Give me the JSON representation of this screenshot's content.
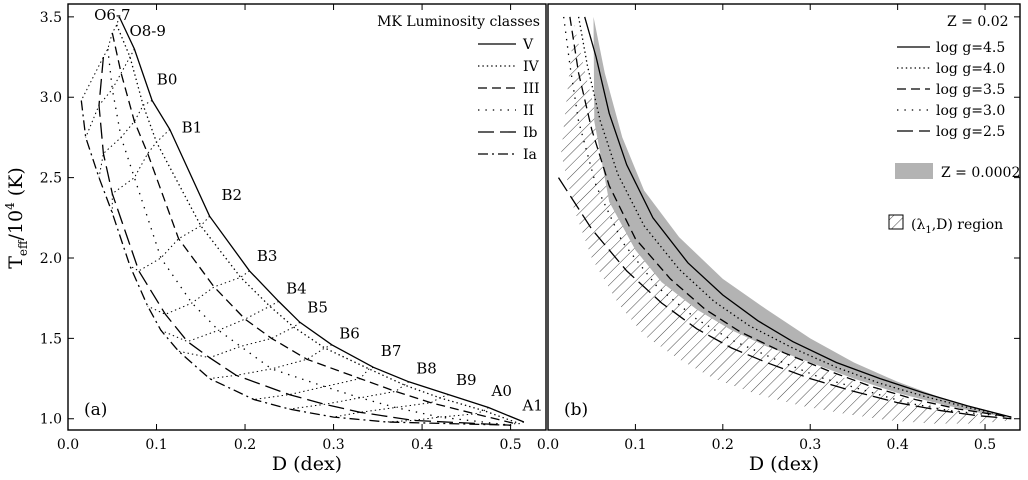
{
  "chart_data": [
    {
      "type": "line",
      "panel_label": "(a)",
      "xlabel": "D  (dex)",
      "ylabel": "T_eff/10^4  (K)",
      "xlim": [
        0.0,
        0.54
      ],
      "ylim": [
        0.93,
        3.58
      ],
      "x_ticks": [
        "0.0",
        "0.1",
        "0.2",
        "0.3",
        "0.4",
        "0.5"
      ],
      "y_ticks": [
        "1.0",
        "1.5",
        "2.0",
        "2.5",
        "3.0",
        "3.5"
      ],
      "legend": {
        "title": "MK Luminosity classes",
        "position": "top-right",
        "entries": [
          "V",
          "IV",
          "III",
          "II",
          "Ib",
          "Ia"
        ]
      },
      "series": [
        {
          "name": "V",
          "style": "solid",
          "x": [
            0.058,
            0.075,
            0.095,
            0.115,
            0.16,
            0.205,
            0.238,
            0.262,
            0.298,
            0.345,
            0.385,
            0.43,
            0.475,
            0.515
          ],
          "y": [
            3.5,
            3.3,
            2.98,
            2.8,
            2.26,
            1.92,
            1.73,
            1.6,
            1.46,
            1.32,
            1.23,
            1.15,
            1.07,
            0.98
          ]
        },
        {
          "name": "IV",
          "style": "dotted",
          "x": [
            0.055,
            0.07,
            0.085,
            0.1,
            0.15,
            0.195,
            0.228,
            0.255,
            0.29,
            0.34,
            0.38,
            0.42,
            0.47,
            0.51
          ],
          "y": [
            3.45,
            3.25,
            2.95,
            2.72,
            2.2,
            1.88,
            1.7,
            1.57,
            1.44,
            1.31,
            1.21,
            1.13,
            1.05,
            0.97
          ]
        },
        {
          "name": "III",
          "style": "dashed",
          "x": [
            0.05,
            0.06,
            0.075,
            0.09,
            0.125,
            0.165,
            0.2,
            0.23,
            0.27,
            0.33,
            0.37,
            0.41,
            0.46,
            0.505
          ],
          "y": [
            3.4,
            3.15,
            2.85,
            2.65,
            2.12,
            1.82,
            1.62,
            1.5,
            1.37,
            1.25,
            1.17,
            1.1,
            1.03,
            0.97
          ]
        },
        {
          "name": "II",
          "style": "dotted-sparse",
          "x": [
            0.045,
            0.05,
            0.06,
            0.075,
            0.105,
            0.14,
            0.17,
            0.195,
            0.23,
            0.29,
            0.33,
            0.37,
            0.42,
            0.5
          ],
          "y": [
            3.3,
            3.05,
            2.75,
            2.5,
            2.0,
            1.72,
            1.55,
            1.45,
            1.31,
            1.2,
            1.13,
            1.07,
            1.01,
            0.96
          ]
        },
        {
          "name": "Ib",
          "style": "long-dash",
          "x": [
            0.04,
            0.035,
            0.04,
            0.05,
            0.08,
            0.11,
            0.135,
            0.16,
            0.19,
            0.25,
            0.29,
            0.33,
            0.39,
            0.5
          ],
          "y": [
            3.25,
            2.95,
            2.65,
            2.4,
            1.92,
            1.65,
            1.48,
            1.38,
            1.27,
            1.15,
            1.09,
            1.04,
            0.99,
            0.96
          ]
        },
        {
          "name": "Ia",
          "style": "dash-dot",
          "x": [
            0.015,
            0.02,
            0.035,
            0.05,
            0.07,
            0.09,
            0.105,
            0.125,
            0.16,
            0.21,
            0.25,
            0.3,
            0.36,
            0.5
          ],
          "y": [
            2.98,
            2.75,
            2.5,
            2.28,
            1.95,
            1.7,
            1.55,
            1.42,
            1.25,
            1.12,
            1.06,
            1.01,
            0.98,
            0.96
          ]
        }
      ],
      "spectral_types": [
        "O6-7",
        "O8-9",
        "B0",
        "B1",
        "B2",
        "B3",
        "B4",
        "B5",
        "B6",
        "B7",
        "B8",
        "B9",
        "A0",
        "A1"
      ],
      "spectral_label_anchor": {
        "x": [
          0.05,
          0.09,
          0.112,
          0.14,
          0.185,
          0.225,
          0.258,
          0.282,
          0.318,
          0.365,
          0.405,
          0.45,
          0.49,
          0.525
        ],
        "y": [
          3.48,
          3.38,
          3.08,
          2.78,
          2.36,
          1.98,
          1.78,
          1.66,
          1.5,
          1.39,
          1.28,
          1.21,
          1.14,
          1.05
        ]
      }
    },
    {
      "type": "line",
      "panel_label": "(b)",
      "xlabel": "D  (dex)",
      "ylabel": "",
      "xlim": [
        0.0,
        0.54
      ],
      "ylim": [
        0.93,
        3.58
      ],
      "x_ticks": [
        "0.0",
        "0.1",
        "0.2",
        "0.3",
        "0.4",
        "0.5"
      ],
      "legend": {
        "title": "Z = 0.02",
        "position": "top-right",
        "entries": [
          "log g=4.5",
          "log g=4.0",
          "log g=3.5",
          "log g=3.0",
          "log g=2.5"
        ],
        "shaded_entry": "Z = 0.0002",
        "hatched_entry_parts": [
          "(λ",
          "1",
          ",D) region"
        ]
      },
      "series": [
        {
          "name": "log g=4.5",
          "style": "solid",
          "x": [
            0.042,
            0.055,
            0.07,
            0.09,
            0.12,
            0.16,
            0.2,
            0.24,
            0.28,
            0.33,
            0.38,
            0.43,
            0.48,
            0.53
          ],
          "y": [
            3.5,
            3.25,
            2.9,
            2.58,
            2.25,
            1.97,
            1.77,
            1.61,
            1.48,
            1.35,
            1.25,
            1.16,
            1.08,
            1.01
          ]
        },
        {
          "name": "log g=4.0",
          "style": "dotted",
          "x": [
            0.035,
            0.045,
            0.06,
            0.08,
            0.11,
            0.15,
            0.19,
            0.23,
            0.28,
            0.33,
            0.38,
            0.43,
            0.48,
            0.53
          ],
          "y": [
            3.5,
            3.2,
            2.85,
            2.52,
            2.2,
            1.93,
            1.73,
            1.58,
            1.44,
            1.32,
            1.22,
            1.14,
            1.07,
            1.01
          ]
        },
        {
          "name": "log g=3.5",
          "style": "dashed",
          "x": [
            0.025,
            0.035,
            0.05,
            0.07,
            0.1,
            0.14,
            0.18,
            0.22,
            0.27,
            0.32,
            0.37,
            0.42,
            0.47,
            0.53
          ],
          "y": [
            3.5,
            3.15,
            2.8,
            2.45,
            2.12,
            1.87,
            1.68,
            1.54,
            1.41,
            1.3,
            1.2,
            1.12,
            1.06,
            1.01
          ]
        },
        {
          "name": "log g=3.0",
          "style": "dotted-sparse",
          "x": [
            0.018,
            0.025,
            0.035,
            0.055,
            0.085,
            0.125,
            0.17,
            0.21,
            0.26,
            0.31,
            0.36,
            0.41,
            0.46,
            0.53
          ],
          "y": [
            3.5,
            3.2,
            2.85,
            2.45,
            2.1,
            1.82,
            1.62,
            1.49,
            1.37,
            1.26,
            1.18,
            1.1,
            1.05,
            1.01
          ]
        },
        {
          "name": "log g=2.5",
          "style": "long-dash",
          "x": [
            0.012,
            0.05,
            0.09,
            0.13,
            0.17,
            0.21,
            0.25,
            0.3,
            0.35,
            0.4,
            0.45,
            0.49,
            0.53
          ],
          "y": [
            2.5,
            2.18,
            1.92,
            1.72,
            1.56,
            1.44,
            1.35,
            1.25,
            1.17,
            1.1,
            1.05,
            1.02,
            1.0
          ]
        }
      ],
      "shaded_region": {
        "name": "Z = 0.0002",
        "x_upper": [
          0.052,
          0.065,
          0.085,
          0.11,
          0.15,
          0.2,
          0.25,
          0.3,
          0.35,
          0.4,
          0.45,
          0.5,
          0.53
        ],
        "y_upper": [
          3.5,
          3.15,
          2.75,
          2.42,
          2.13,
          1.87,
          1.68,
          1.5,
          1.35,
          1.23,
          1.13,
          1.05,
          1.01
        ],
        "x_lower": [
          0.053,
          0.07,
          0.1,
          0.13,
          0.17,
          0.21,
          0.25,
          0.3,
          0.35,
          0.4,
          0.45,
          0.5,
          0.53
        ],
        "y_lower": [
          2.85,
          2.35,
          2.05,
          1.85,
          1.68,
          1.55,
          1.45,
          1.35,
          1.25,
          1.16,
          1.09,
          1.03,
          1.01
        ]
      },
      "hatched_region": {
        "name": "(λ1,D) region",
        "x_upper": [
          0.03,
          0.045,
          0.065,
          0.09,
          0.12,
          0.16,
          0.2,
          0.25,
          0.3,
          0.35,
          0.4,
          0.45,
          0.5,
          0.53
        ],
        "y_upper": [
          3.45,
          3.1,
          2.7,
          2.35,
          2.05,
          1.82,
          1.64,
          1.47,
          1.34,
          1.23,
          1.14,
          1.07,
          1.02,
          1.0
        ],
        "x_lower": [
          0.015,
          0.03,
          0.05,
          0.08,
          0.11,
          0.15,
          0.19,
          0.24,
          0.29,
          0.34,
          0.39,
          0.44,
          0.49,
          0.53
        ],
        "y_lower": [
          2.65,
          2.3,
          2.0,
          1.72,
          1.52,
          1.37,
          1.25,
          1.15,
          1.08,
          1.03,
          0.99,
          0.97,
          0.97,
          0.99
        ]
      }
    }
  ]
}
